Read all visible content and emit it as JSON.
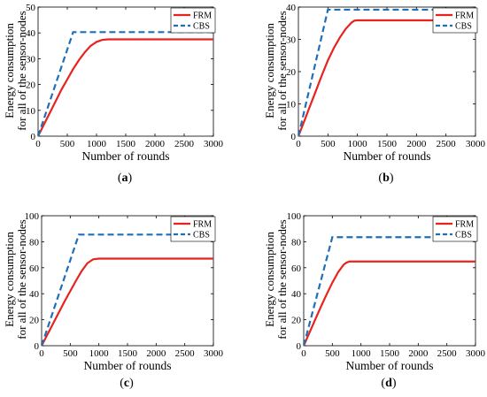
{
  "chart_data": [
    {
      "type": "line",
      "caption": "(a)",
      "caption_letter": "a",
      "xlabel": "Number of rounds",
      "ylabel_lines": [
        "Energy consumption",
        "for all of the sensor-nodes"
      ],
      "xlim": [
        0,
        3000
      ],
      "ylim": [
        0,
        50
      ],
      "xticks": [
        0,
        500,
        1000,
        1500,
        2000,
        2500,
        3000
      ],
      "yticks": [
        0,
        10,
        20,
        30,
        40,
        50
      ],
      "legend_position": "top-right",
      "grid": false,
      "series": [
        {
          "name": "FRM",
          "color": "#e8231e",
          "style": "solid",
          "x": [
            0,
            100,
            200,
            300,
            400,
            500,
            600,
            700,
            800,
            900,
            1000,
            1100,
            1200,
            1500,
            2000,
            2500,
            3000
          ],
          "y": [
            0,
            4.5,
            9,
            13.5,
            18,
            22,
            26,
            29.5,
            32.5,
            35,
            36.5,
            37.3,
            37.5,
            37.5,
            37.5,
            37.5,
            37.5
          ]
        },
        {
          "name": "CBS",
          "color": "#1f6fb8",
          "style": "dashed",
          "x": [
            0,
            600,
            1000,
            1500,
            2000,
            2500,
            3000
          ],
          "y": [
            0,
            40.3,
            40.3,
            40.3,
            40.3,
            40.3,
            40.3
          ]
        }
      ]
    },
    {
      "type": "line",
      "caption": "(b)",
      "caption_letter": "b",
      "xlabel": "Number of rounds",
      "ylabel_lines": [
        "Energy consumption",
        "for all of the sensor-nodes"
      ],
      "xlim": [
        0,
        3000
      ],
      "ylim": [
        0,
        40
      ],
      "xticks": [
        0,
        500,
        1000,
        1500,
        2000,
        2500,
        3000
      ],
      "yticks": [
        0,
        10,
        20,
        30,
        40
      ],
      "legend_position": "top-right",
      "grid": false,
      "series": [
        {
          "name": "FRM",
          "color": "#e8231e",
          "style": "solid",
          "x": [
            0,
            100,
            200,
            300,
            400,
            500,
            600,
            700,
            800,
            900,
            950,
            1000,
            1500,
            2000,
            2500,
            3000
          ],
          "y": [
            0,
            4.7,
            9.5,
            14.2,
            19,
            23.5,
            27.3,
            30.5,
            33.2,
            35.2,
            35.8,
            35.9,
            35.9,
            35.9,
            35.9,
            35.9
          ]
        },
        {
          "name": "CBS",
          "color": "#1f6fb8",
          "style": "dashed",
          "x": [
            0,
            500,
            1000,
            1500,
            2000,
            2500,
            3000
          ],
          "y": [
            0,
            39.2,
            39.2,
            39.2,
            39.2,
            39.2,
            39.2
          ]
        }
      ]
    },
    {
      "type": "line",
      "caption": "(c)",
      "caption_letter": "c",
      "xlabel": "Number of rounds",
      "ylabel_lines": [
        "Energy consumption",
        "for all of the sensor-nodes"
      ],
      "xlim": [
        0,
        3000
      ],
      "ylim": [
        0,
        100
      ],
      "xticks": [
        0,
        500,
        1000,
        1500,
        2000,
        2500,
        3000
      ],
      "yticks": [
        0,
        20,
        40,
        60,
        80,
        100
      ],
      "legend_position": "top-right",
      "grid": false,
      "series": [
        {
          "name": "FRM",
          "color": "#e8231e",
          "style": "solid",
          "x": [
            0,
            100,
            200,
            300,
            400,
            500,
            600,
            700,
            800,
            900,
            1000,
            1500,
            2000,
            2500,
            3000
          ],
          "y": [
            0,
            8.5,
            17,
            25.5,
            34,
            42,
            50,
            57.5,
            63.5,
            66.5,
            67,
            67,
            67,
            67,
            67
          ]
        },
        {
          "name": "CBS",
          "color": "#1f6fb8",
          "style": "dashed",
          "x": [
            0,
            650,
            1000,
            1500,
            2000,
            2500,
            3000
          ],
          "y": [
            0,
            85.5,
            85.5,
            85.5,
            85.5,
            85.5,
            85.5
          ]
        }
      ]
    },
    {
      "type": "line",
      "caption": "(d)",
      "caption_letter": "d",
      "xlabel": "Number of rounds",
      "ylabel_lines": [
        "Energy consumption",
        "for all of the sensor-nodes"
      ],
      "xlim": [
        0,
        3000
      ],
      "ylim": [
        0,
        100
      ],
      "xticks": [
        0,
        500,
        1000,
        1500,
        2000,
        2500,
        3000
      ],
      "yticks": [
        0,
        20,
        40,
        60,
        80,
        100
      ],
      "legend_position": "top-right",
      "grid": false,
      "series": [
        {
          "name": "FRM",
          "color": "#e8231e",
          "style": "solid",
          "x": [
            0,
            100,
            200,
            300,
            400,
            500,
            600,
            700,
            750,
            800,
            1000,
            1500,
            2000,
            2500,
            3000
          ],
          "y": [
            0,
            10,
            20,
            30,
            39.5,
            48.5,
            56.5,
            62.5,
            64,
            64.8,
            64.8,
            64.8,
            64.8,
            64.8,
            64.8
          ]
        },
        {
          "name": "CBS",
          "color": "#1f6fb8",
          "style": "dashed",
          "x": [
            0,
            500,
            1000,
            1500,
            2000,
            2500,
            3000
          ],
          "y": [
            0,
            83.5,
            83.5,
            83.5,
            83.5,
            83.5,
            83.5
          ]
        }
      ]
    }
  ]
}
